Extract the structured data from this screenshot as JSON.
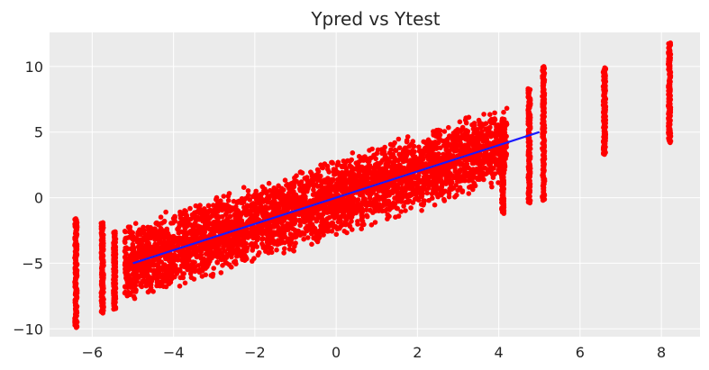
{
  "chart_data": {
    "type": "scatter",
    "title": "Ypred vs Ytest",
    "xlabel": "",
    "ylabel": "",
    "xlim": [
      -7.05,
      8.95
    ],
    "ylim": [
      -10.6,
      12.6
    ],
    "xticks": [
      -6,
      -4,
      -2,
      0,
      2,
      4,
      6,
      8
    ],
    "xtick_labels": [
      "−6",
      "−4",
      "−2",
      "0",
      "2",
      "4",
      "6",
      "8"
    ],
    "yticks": [
      -10,
      -5,
      0,
      5,
      10
    ],
    "ytick_labels": [
      "−10",
      "−5",
      "0",
      "5",
      "10"
    ],
    "grid": true,
    "style": {
      "background": "#ebebeb",
      "grid_color": "#ffffff",
      "point_color": "#ff0000",
      "line_color": "#1a1aff"
    },
    "series": [
      {
        "type": "scatter",
        "dense_band": {
          "x_range": [
            -5.2,
            4.2
          ],
          "center_slope": 0.98,
          "center_intercept": 0.0,
          "half_width": 3.1
        },
        "columns": [
          {
            "x": -6.4,
            "ymin": -9.9,
            "ymax": -1.6
          },
          {
            "x": -5.75,
            "ymin": -8.8,
            "ymax": -1.9
          },
          {
            "x": -5.45,
            "ymin": -8.5,
            "ymax": -2.6
          },
          {
            "x": 4.1,
            "ymin": -1.2,
            "ymax": 5.9
          },
          {
            "x": 4.75,
            "ymin": -0.4,
            "ymax": 8.3
          },
          {
            "x": 5.1,
            "ymin": -0.2,
            "ymax": 10.0
          },
          {
            "x": 6.6,
            "ymin": 3.3,
            "ymax": 9.9
          },
          {
            "x": 8.2,
            "ymin": 4.2,
            "ymax": 11.8
          }
        ]
      },
      {
        "type": "line",
        "x": [
          -5,
          5
        ],
        "y": [
          -5,
          5
        ]
      }
    ]
  }
}
